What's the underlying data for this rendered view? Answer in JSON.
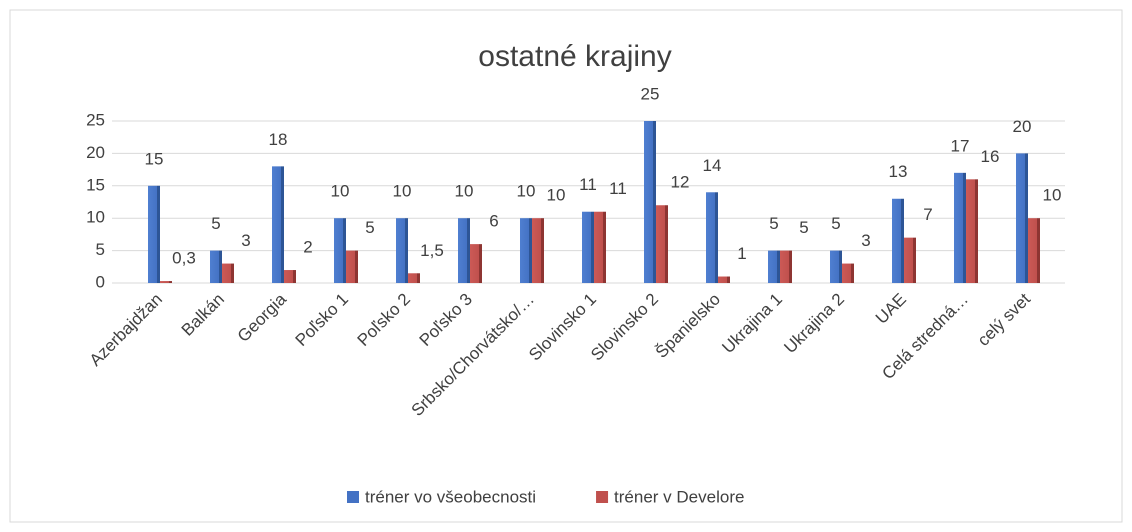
{
  "chart_data": {
    "type": "bar",
    "title": "ostatné krajiny",
    "categories": [
      "Azerbajdžan",
      "Balkán",
      "Georgia",
      "Poľsko 1",
      "Poľsko 2",
      "Poľsko 3",
      "Srbsko/Chorvátsko/…",
      "Slovinsko 1",
      "Slovinsko 2",
      "Španielsko",
      "Ukrajina 1",
      "Ukrajina 2",
      "UAE",
      "Celá stredná…",
      "celý svet"
    ],
    "series": [
      {
        "name": "tréner vo všeobecnosti",
        "color": "#4472c4",
        "values": [
          15,
          5,
          18,
          10,
          10,
          10,
          10,
          11,
          25,
          14,
          5,
          5,
          13,
          17,
          20
        ]
      },
      {
        "name": "tréner v Develore",
        "color": "#c0504d",
        "values": [
          0.3,
          3,
          2,
          5,
          1.5,
          6,
          10,
          11,
          12,
          1,
          5,
          3,
          7,
          16,
          10
        ],
        "value_labels": [
          "0,3",
          "3",
          "2",
          "5",
          "1,5",
          "6",
          "10",
          "11",
          "12",
          "1",
          "5",
          "3",
          "7",
          "16",
          "10"
        ]
      }
    ],
    "ylim": [
      0,
      25
    ],
    "yticks": [
      0,
      5,
      10,
      15,
      20,
      25
    ],
    "grid": true,
    "legend": "bottom"
  }
}
